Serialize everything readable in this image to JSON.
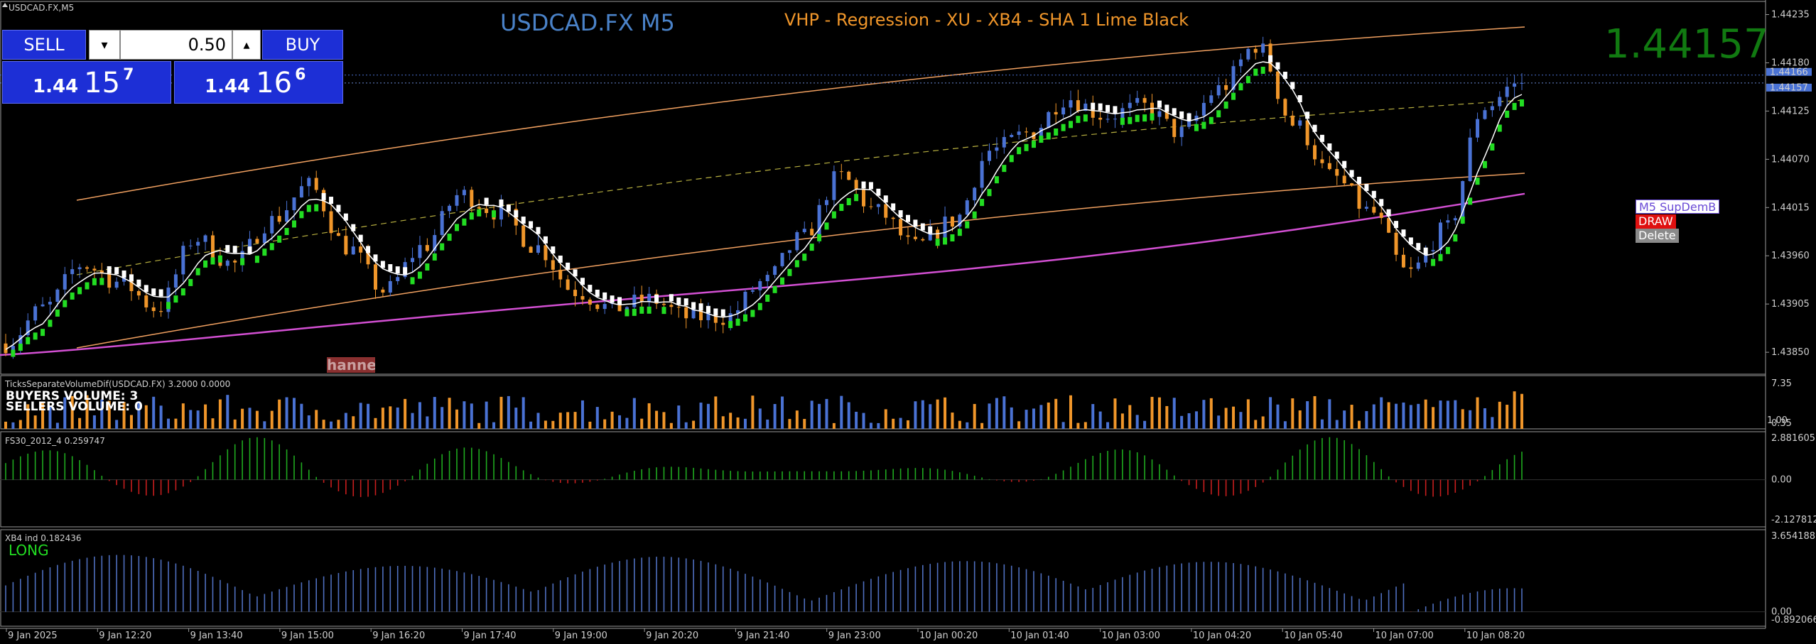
{
  "window": {
    "title": "USDCAD.FX,M5"
  },
  "chart_heading": "USDCAD.FX M5",
  "indicator_heading": "VHP - Regression - XU - XB4 - SHA 1 Lime  Black",
  "big_price": "1.44157",
  "trade_panel": {
    "sell_label": "SELL",
    "buy_label": "BUY",
    "lot": "0.50",
    "down_arrow": "▾",
    "up_arrow": "▴",
    "sell_price": {
      "big": "1.44",
      "huge": "15",
      "sup": "7"
    },
    "buy_price": {
      "big": "1.44",
      "huge": "16",
      "sup": "6"
    }
  },
  "objects": {
    "supdem_label": "M5 SupDemB",
    "draw_label": "DRAW",
    "delete_label": "Delete",
    "channel_label": "hanne"
  },
  "colors": {
    "bull": "#4a72d4",
    "bear": "#f0962a",
    "regression": "#f0a060",
    "ma_magenta": "#d24fd2",
    "lime": "#22dd22",
    "heading_blue": "#4a82c8",
    "heading_orange": "#f0962a",
    "price_green": "#117a11",
    "osc_green": "#1faa1f",
    "osc_red": "#c81e1e",
    "xb4_blue": "#4f6fbf"
  },
  "price_axis": {
    "ticks": [
      "1.44235",
      "1.44180",
      "1.44125",
      "1.44070",
      "1.44015",
      "1.43960",
      "1.43905",
      "1.43850"
    ],
    "tags": [
      "1.44166",
      "1.44157"
    ]
  },
  "time_axis": {
    "labels": [
      "9 Jan 2025",
      "9 Jan 12:20",
      "9 Jan 13:40",
      "9 Jan 15:00",
      "9 Jan 16:20",
      "9 Jan 17:40",
      "9 Jan 19:00",
      "9 Jan 20:20",
      "9 Jan 21:40",
      "9 Jan 23:00",
      "10 Jan 00:20",
      "10 Jan 01:40",
      "10 Jan 03:00",
      "10 Jan 04:20",
      "10 Jan 05:40",
      "10 Jan 07:00",
      "10 Jan 08:20"
    ]
  },
  "volume_panel": {
    "title": "TicksSeparateVolumeDif(USDCAD.FX) 3.2000 0.0000",
    "buyers": "BUYERS VOLUME: 3",
    "sellers": "SELLERS VOLUME: 0",
    "ticks": [
      "7.35",
      "0.35"
    ],
    "tag": "1.00"
  },
  "fs30_panel": {
    "title": "FS30_2012_4 0.259747",
    "ticks": [
      "2.881605",
      "0.00",
      "-2.127812"
    ]
  },
  "xb4_panel": {
    "title": "XB4 ind 0.182436",
    "signal": "LONG",
    "ticks": [
      "3.654188",
      "0.00",
      "-0.892066"
    ]
  },
  "chart_data": {
    "type": "candlestick",
    "title": "USDCAD.FX M5",
    "timeframe": "M5",
    "ylim": [
      1.4383,
      1.4425
    ],
    "last_bid": 1.44157,
    "last_ask": 1.44166,
    "approx_closes": [
      1.4386,
      1.439,
      1.4395,
      1.4393,
      1.439,
      1.4398,
      1.4395,
      1.44,
      1.4404,
      1.4397,
      1.4392,
      1.4397,
      1.4403,
      1.4401,
      1.4397,
      1.4392,
      1.439,
      1.4391,
      1.4389,
      1.4389,
      1.4393,
      1.4398,
      1.4405,
      1.4401,
      1.4397,
      1.44,
      1.4408,
      1.441,
      1.4414,
      1.4412,
      1.4413,
      1.441,
      1.4415,
      1.442,
      1.4411,
      1.4405,
      1.4401,
      1.4394,
      1.4399,
      1.4413,
      1.4416
    ]
  }
}
